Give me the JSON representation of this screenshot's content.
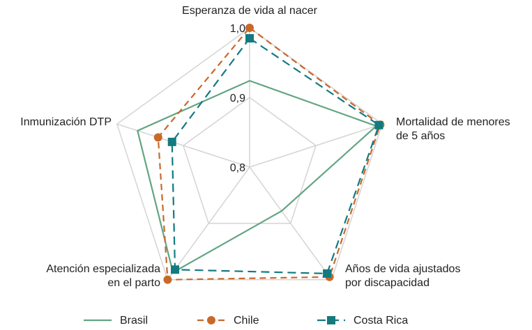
{
  "chart_data": {
    "type": "radar",
    "categories": [
      "Esperanza de vida al nacer",
      "Mortalidad de menores de 5 años",
      "Años de vida ajustados por discapacidad",
      "Atención especializada en el parto",
      "Inmunización DTP"
    ],
    "series": [
      {
        "name": "Brasil",
        "color": "#62a583",
        "values": [
          0.924,
          0.991,
          0.878,
          0.987,
          0.969
        ]
      },
      {
        "name": "Chile",
        "color": "#c8692a",
        "values": [
          1.0,
          0.997,
          0.995,
          1.0,
          0.938
        ]
      },
      {
        "name": "Costa Rica",
        "color": "#137a80",
        "values": [
          0.985,
          0.995,
          0.989,
          0.982,
          0.917
        ]
      }
    ],
    "ylim": [
      0.8,
      1.0
    ],
    "yticks": [
      {
        "value": 0.8,
        "label": "0,8"
      },
      {
        "value": 0.9,
        "label": "0,9"
      },
      {
        "value": 1.0,
        "label": "1,0"
      }
    ],
    "grid": true,
    "legend": "bottom"
  }
}
